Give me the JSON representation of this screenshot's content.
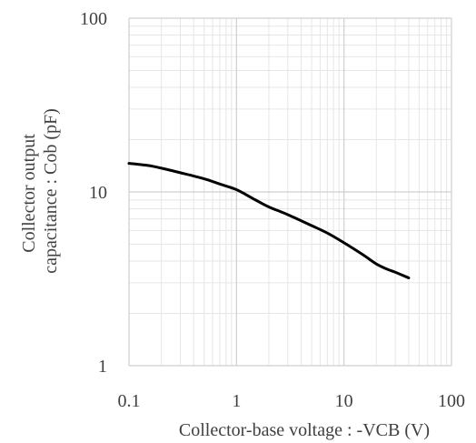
{
  "chart_data": {
    "type": "line",
    "title": "",
    "xlabel": "Collector-base voltage : -VCB (V)",
    "ylabel_lines": [
      "Collector output",
      "capacitance : Cob (pF)"
    ],
    "x_scale": "log",
    "y_scale": "log",
    "xlim": [
      0.1,
      100
    ],
    "ylim": [
      1,
      100
    ],
    "x_ticks": [
      0.1,
      1,
      10,
      100
    ],
    "x_tick_labels": [
      "0.1",
      "1",
      "10",
      "100"
    ],
    "y_ticks": [
      1,
      10,
      100
    ],
    "y_tick_labels": [
      "1",
      "10",
      "100"
    ],
    "grid": true,
    "series": [
      {
        "color": "#000000",
        "x": [
          0.1,
          0.15,
          0.2,
          0.3,
          0.5,
          0.7,
          1,
          1.5,
          2,
          3,
          5,
          7,
          10,
          15,
          20,
          25,
          30,
          40
        ],
        "y": [
          14.6,
          14.2,
          13.7,
          12.9,
          11.9,
          11.1,
          10.3,
          9.0,
          8.2,
          7.4,
          6.4,
          5.8,
          5.1,
          4.35,
          3.85,
          3.6,
          3.45,
          3.2
        ]
      }
    ]
  }
}
